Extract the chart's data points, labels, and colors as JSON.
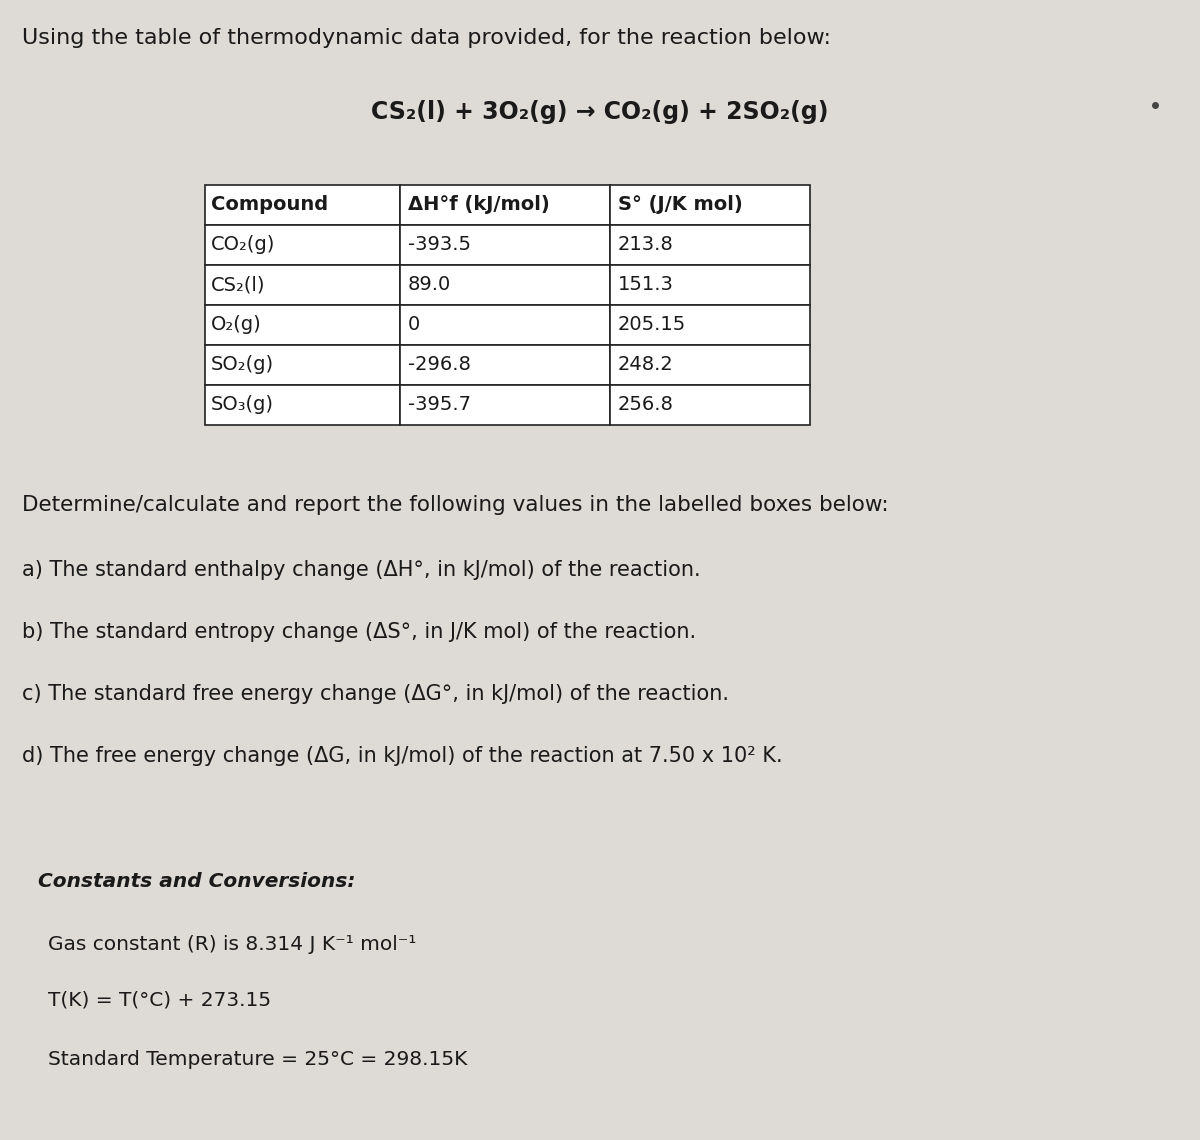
{
  "bg_color": "#dedad6",
  "title_line1": "Using the table of thermodynamic data provided, for the reaction below:",
  "reaction": "CS₂(l) + 3O₂(g) → CO₂(g) + 2SO₂(g)",
  "table_headers": [
    "Compound",
    "ΔH°f (kJ/mol)",
    "S° (J/K mol)"
  ],
  "table_rows": [
    [
      "CO₂(g)",
      "-393.5",
      "213.8"
    ],
    [
      "CS₂(l)",
      "89.0",
      "151.3"
    ],
    [
      "O₂(g)",
      "0",
      "205.15"
    ],
    [
      "SO₂(g)",
      "-296.8",
      "248.2"
    ],
    [
      "SO₃(g)",
      "-395.7",
      "256.8"
    ]
  ],
  "determine_text": "Determine/calculate and report the following values in the labelled boxes below:",
  "questions": [
    "a) The standard enthalpy change (ΔH°, in kJ/mol) of the reaction.",
    "b) The standard entropy change (ΔS°, in J/K mol) of the reaction.",
    "c) The standard free energy change (ΔG°, in kJ/mol) of the reaction.",
    "d) The free energy change (ΔG, in kJ/mol) of the reaction at 7.50 x 10² K."
  ],
  "constants_header": "Constants and Conversions:",
  "constants": [
    "Gas constant (R) is 8.314 J K⁻¹ mol⁻¹",
    "T(K) = T(°C) + 273.15",
    "Standard Temperature = 25°C = 298.15K"
  ]
}
